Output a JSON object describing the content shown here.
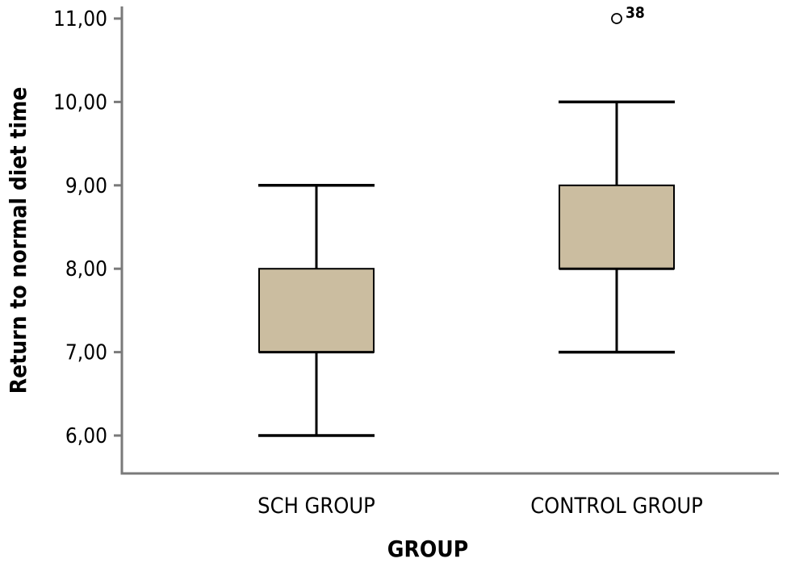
{
  "chart_data": {
    "type": "box",
    "xlabel": "GROUP",
    "ylabel": "Return to normal diet time",
    "ylim": [
      5.5,
      11.0
    ],
    "yticks": [
      6,
      7,
      8,
      9,
      10,
      11
    ],
    "ytick_labels": [
      "6,00",
      "7,00",
      "8,00",
      "9,00",
      "10,00",
      "11,00"
    ],
    "categories": [
      "SCH GROUP",
      "CONTROL GROUP"
    ],
    "boxes": [
      {
        "category": "SCH GROUP",
        "whisker_low": 6.0,
        "q1": 7.0,
        "median": 7.0,
        "q3": 8.0,
        "whisker_high": 9.0,
        "outliers": []
      },
      {
        "category": "CONTROL GROUP",
        "whisker_low": 7.0,
        "q1": 8.0,
        "median": 8.0,
        "q3": 9.0,
        "whisker_high": 10.0,
        "outliers": [
          {
            "value": 11.0,
            "label": "38"
          }
        ]
      }
    ],
    "grid": false,
    "legend": "none",
    "colors": {
      "box_fill": "#cbbda0",
      "stroke": "#000000",
      "axis": "#7a7a7a"
    }
  }
}
